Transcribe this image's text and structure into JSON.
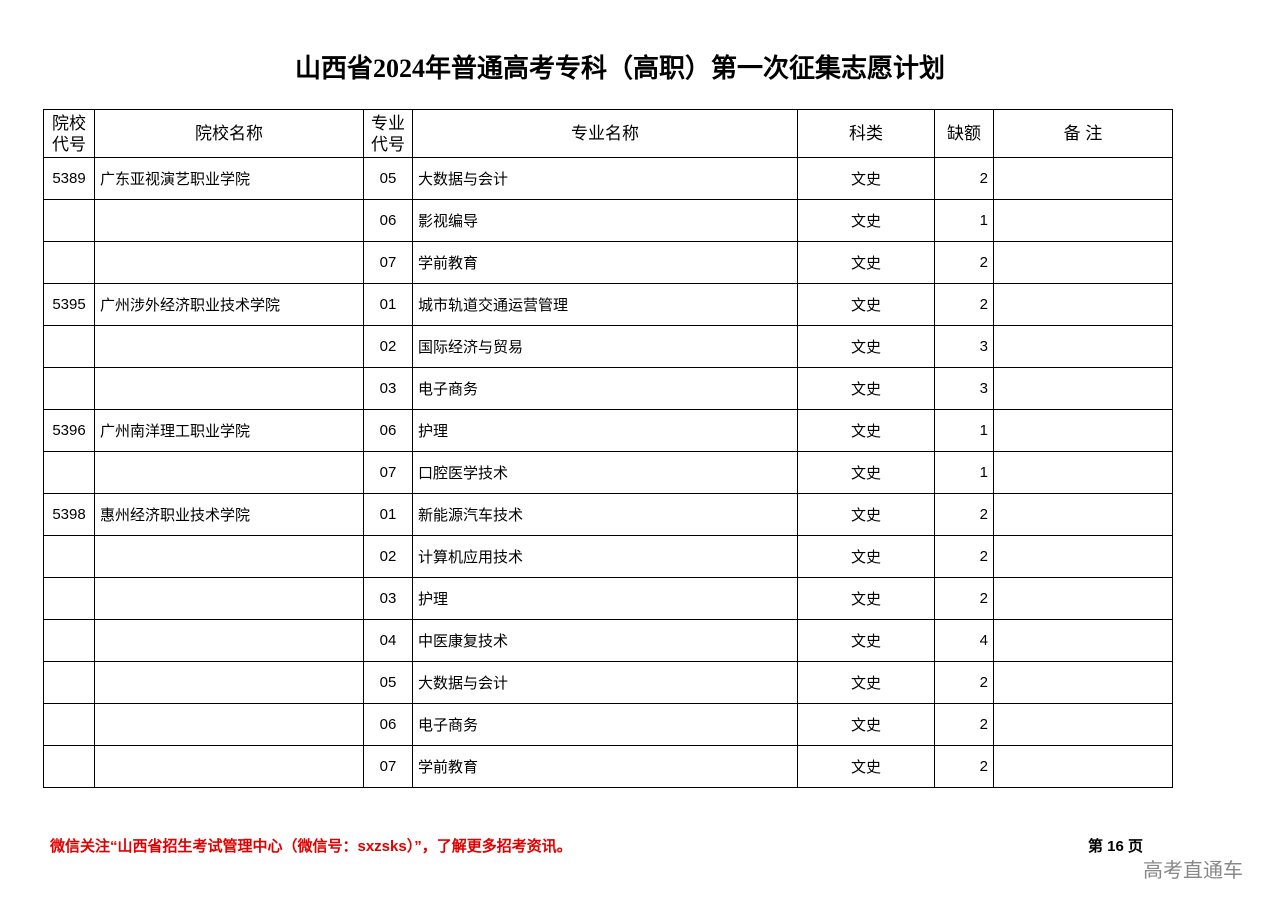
{
  "header": {
    "title": "山西省2024年普通高考专科（高职）第一次征集志愿计划"
  },
  "table": {
    "columns": [
      [
        "院校",
        "代号"
      ],
      "院校名称",
      [
        "专业",
        "代号"
      ],
      "专业名称",
      "科类",
      "缺额",
      "备  注"
    ],
    "rows": [
      [
        "5389",
        "广东亚视演艺职业学院",
        "05",
        "大数据与会计",
        "文史",
        2,
        null
      ],
      [
        null,
        null,
        "06",
        "影视编导",
        "文史",
        1,
        null
      ],
      [
        null,
        null,
        "07",
        "学前教育",
        "文史",
        2,
        null
      ],
      [
        "5395",
        "广州涉外经济职业技术学院",
        "01",
        "城市轨道交通运营管理",
        "文史",
        2,
        null
      ],
      [
        null,
        null,
        "02",
        "国际经济与贸易",
        "文史",
        3,
        null
      ],
      [
        null,
        null,
        "03",
        "电子商务",
        "文史",
        3,
        null
      ],
      [
        "5396",
        "广州南洋理工职业学院",
        "06",
        "护理",
        "文史",
        1,
        null
      ],
      [
        null,
        null,
        "07",
        "口腔医学技术",
        "文史",
        1,
        null
      ],
      [
        "5398",
        "惠州经济职业技术学院",
        "01",
        "新能源汽车技术",
        "文史",
        2,
        null
      ],
      [
        null,
        null,
        "02",
        "计算机应用技术",
        "文史",
        2,
        null
      ],
      [
        null,
        null,
        "03",
        "护理",
        "文史",
        2,
        null
      ],
      [
        null,
        null,
        "04",
        "中医康复技术",
        "文史",
        4,
        null
      ],
      [
        null,
        null,
        "05",
        "大数据与会计",
        "文史",
        2,
        null
      ],
      [
        null,
        null,
        "06",
        "电子商务",
        "文史",
        2,
        null
      ],
      [
        null,
        null,
        "07",
        "学前教育",
        "文史",
        2,
        null
      ]
    ]
  },
  "footer": {
    "notice": "微信关注“山西省招生考试管理中心（微信号：sxzsks）”，了解更多招考资讯。",
    "page": "第 16 页",
    "watermark": "高考直通车"
  }
}
